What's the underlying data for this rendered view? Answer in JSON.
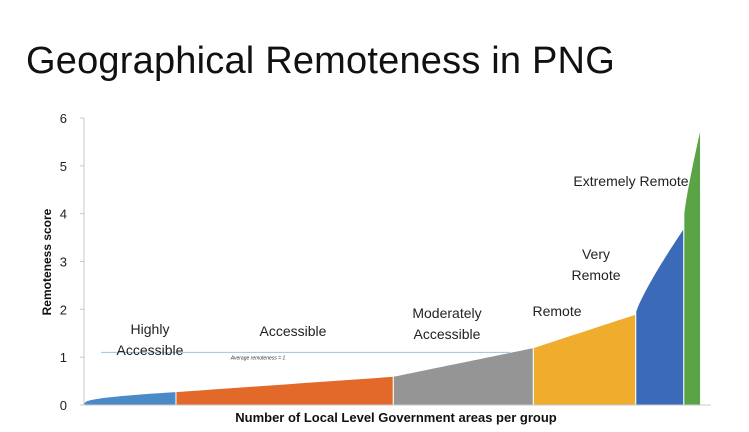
{
  "slide": {
    "title": "Geographical Remoteness in PNG"
  },
  "chart_data": {
    "type": "area",
    "title": "",
    "xlabel": "Number of Local Level Government areas per group",
    "ylabel": "Remoteness score",
    "ylim": [
      0,
      6
    ],
    "yticks": [
      "0",
      "1",
      "2",
      "3",
      "4",
      "5",
      "6"
    ],
    "grid": false,
    "legend": "none",
    "n_areas": 300,
    "reference_line": {
      "label": "Average remoteness = 1",
      "value": 1.1,
      "color": "#9cc3de"
    },
    "series": [
      {
        "name": "Highly Accessible",
        "label_lines": [
          "Highly",
          "Accessible"
        ],
        "color": "#4a8ac7",
        "x_start": 0,
        "x_end": 44,
        "y_start": 0.05,
        "y_end": 0.28
      },
      {
        "name": "Accessible",
        "label_lines": [
          "Accessible"
        ],
        "color": "#e2692a",
        "x_start": 44,
        "x_end": 148,
        "y_start": 0.28,
        "y_end": 0.6
      },
      {
        "name": "Moderately Accessible",
        "label_lines": [
          "Moderately",
          "Accessible"
        ],
        "color": "#959595",
        "x_start": 148,
        "x_end": 215,
        "y_start": 0.6,
        "y_end": 1.2
      },
      {
        "name": "Remote",
        "label_lines": [
          "Remote"
        ],
        "color": "#f0ad2d",
        "x_start": 215,
        "x_end": 264,
        "y_start": 1.2,
        "y_end": 1.9
      },
      {
        "name": "Very Remote",
        "label_lines": [
          "Very",
          "Remote"
        ],
        "color": "#3b6bb8",
        "x_start": 264,
        "x_end": 287,
        "y_start": 1.95,
        "y_end": 3.7
      },
      {
        "name": "Extremely Remote",
        "label_lines": [
          "Extremely Remote"
        ],
        "color": "#5aa346",
        "x_start": 287,
        "x_end": 295,
        "y_start": 4.0,
        "y_end": 5.8
      }
    ]
  }
}
